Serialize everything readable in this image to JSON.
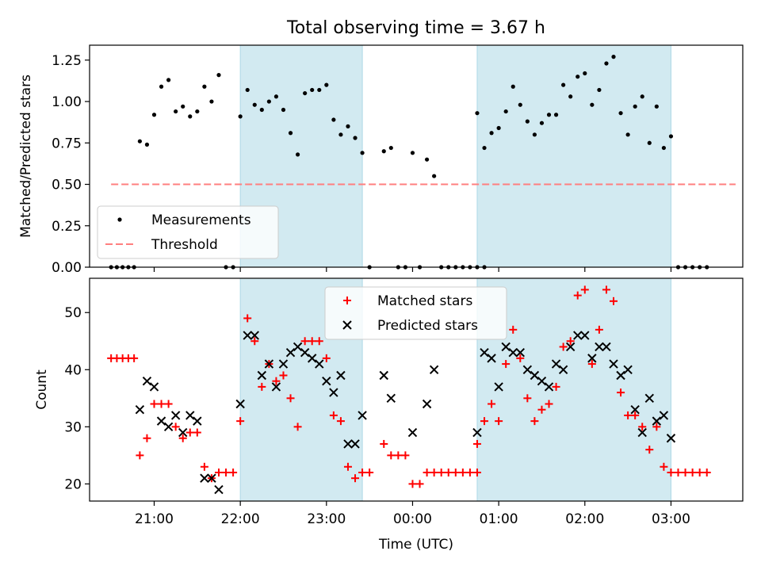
{
  "title": "Total observing time = 3.67 h",
  "colors": {
    "shade": "#add8e6",
    "measurement": "#000000",
    "threshold": "#ff7f7f",
    "matched": "#ff0000",
    "predicted": "#000000"
  },
  "chart_data": [
    {
      "type": "scatter",
      "ylabel": "Matched/Predicted stars",
      "ylim": [
        0,
        1.34
      ],
      "yticks": [
        0.0,
        0.25,
        0.5,
        0.75,
        1.0,
        1.25
      ],
      "ytick_labels": [
        "0.00",
        "0.25",
        "0.50",
        "0.75",
        "1.00",
        "1.25"
      ],
      "xlim": [
        "20:15",
        "03:50"
      ],
      "xticks": [
        "21:00",
        "22:00",
        "23:00",
        "00:00",
        "01:00",
        "02:00",
        "03:00"
      ],
      "shaded_intervals": [
        [
          "22:00",
          "23:25"
        ],
        [
          "00:45",
          "03:00"
        ]
      ],
      "legend": {
        "position": "lower-left",
        "entries": [
          "Measurements",
          "Threshold"
        ]
      },
      "threshold": {
        "name": "Threshold",
        "x": [
          "20:30",
          "03:45"
        ],
        "y": 0.5
      },
      "series": [
        {
          "name": "Measurements",
          "points": [
            [
              "20:30",
              0
            ],
            [
              "20:34",
              0
            ],
            [
              "20:38",
              0
            ],
            [
              "20:42",
              0
            ],
            [
              "20:46",
              0
            ],
            [
              "20:50",
              0.76
            ],
            [
              "20:55",
              0.74
            ],
            [
              "21:00",
              0.92
            ],
            [
              "21:05",
              1.09
            ],
            [
              "21:10",
              1.13
            ],
            [
              "21:15",
              0.94
            ],
            [
              "21:20",
              0.97
            ],
            [
              "21:25",
              0.91
            ],
            [
              "21:30",
              0.94
            ],
            [
              "21:35",
              1.09
            ],
            [
              "21:40",
              1.0
            ],
            [
              "21:45",
              1.16
            ],
            [
              "21:50",
              0
            ],
            [
              "21:55",
              0
            ],
            [
              "22:00",
              0.91
            ],
            [
              "22:05",
              1.07
            ],
            [
              "22:10",
              0.98
            ],
            [
              "22:15",
              0.95
            ],
            [
              "22:20",
              1.0
            ],
            [
              "22:25",
              1.03
            ],
            [
              "22:30",
              0.95
            ],
            [
              "22:35",
              0.81
            ],
            [
              "22:40",
              0.68
            ],
            [
              "22:45",
              1.05
            ],
            [
              "22:50",
              1.07
            ],
            [
              "22:55",
              1.07
            ],
            [
              "23:00",
              1.1
            ],
            [
              "23:05",
              0.89
            ],
            [
              "23:10",
              0.8
            ],
            [
              "23:15",
              0.85
            ],
            [
              "23:20",
              0.78
            ],
            [
              "23:25",
              0.69
            ],
            [
              "23:30",
              0
            ],
            [
              "23:40",
              0.7
            ],
            [
              "23:45",
              0.72
            ],
            [
              "23:50",
              0
            ],
            [
              "23:55",
              0
            ],
            [
              "24:00",
              0.69
            ],
            [
              "24:05",
              0
            ],
            [
              "24:10",
              0.65
            ],
            [
              "24:15",
              0.55
            ],
            [
              "24:20",
              0
            ],
            [
              "24:25",
              0
            ],
            [
              "24:30",
              0
            ],
            [
              "24:35",
              0
            ],
            [
              "24:40",
              0
            ],
            [
              "24:45",
              0
            ],
            [
              "24:50",
              0
            ],
            [
              "24:45",
              0.93
            ],
            [
              "24:50",
              0.72
            ],
            [
              "24:55",
              0.81
            ],
            [
              "25:00",
              0.84
            ],
            [
              "25:05",
              0.94
            ],
            [
              "25:10",
              1.09
            ],
            [
              "25:15",
              0.98
            ],
            [
              "25:20",
              0.88
            ],
            [
              "25:25",
              0.8
            ],
            [
              "25:30",
              0.87
            ],
            [
              "25:35",
              0.92
            ],
            [
              "25:40",
              0.92
            ],
            [
              "25:45",
              1.1
            ],
            [
              "25:50",
              1.03
            ],
            [
              "25:55",
              1.15
            ],
            [
              "26:00",
              1.17
            ],
            [
              "26:05",
              0.98
            ],
            [
              "26:10",
              1.07
            ],
            [
              "26:15",
              1.23
            ],
            [
              "26:20",
              1.27
            ],
            [
              "26:25",
              0.93
            ],
            [
              "26:30",
              0.8
            ],
            [
              "26:35",
              0.97
            ],
            [
              "26:40",
              1.03
            ],
            [
              "26:45",
              0.75
            ],
            [
              "26:50",
              0.97
            ],
            [
              "26:55",
              0.72
            ],
            [
              "27:00",
              0.79
            ],
            [
              "27:05",
              0
            ],
            [
              "27:10",
              0
            ],
            [
              "27:15",
              0
            ],
            [
              "27:20",
              0
            ],
            [
              "27:25",
              0
            ]
          ]
        }
      ]
    },
    {
      "type": "scatter",
      "xlabel": "Time (UTC)",
      "ylabel": "Count",
      "ylim": [
        17,
        56
      ],
      "yticks": [
        20,
        30,
        40,
        50
      ],
      "ytick_labels": [
        "20",
        "30",
        "40",
        "50"
      ],
      "xlim": [
        "20:15",
        "03:50"
      ],
      "xticks": [
        "21:00",
        "22:00",
        "23:00",
        "00:00",
        "01:00",
        "02:00",
        "03:00"
      ],
      "xtick_labels": [
        "21:00",
        "22:00",
        "23:00",
        "00:00",
        "01:00",
        "02:00",
        "03:00"
      ],
      "shaded_intervals": [
        [
          "22:00",
          "23:25"
        ],
        [
          "00:45",
          "03:00"
        ]
      ],
      "legend": {
        "position": "top-center",
        "entries": [
          "Matched stars",
          "Predicted stars"
        ]
      },
      "series": [
        {
          "name": "Matched stars",
          "marker": "+",
          "points": [
            [
              "20:30",
              42
            ],
            [
              "20:34",
              42
            ],
            [
              "20:38",
              42
            ],
            [
              "20:42",
              42
            ],
            [
              "20:46",
              42
            ],
            [
              "20:50",
              25
            ],
            [
              "20:55",
              28
            ],
            [
              "21:00",
              34
            ],
            [
              "21:05",
              34
            ],
            [
              "21:10",
              34
            ],
            [
              "21:15",
              30
            ],
            [
              "21:20",
              28
            ],
            [
              "21:25",
              29
            ],
            [
              "21:30",
              29
            ],
            [
              "21:35",
              23
            ],
            [
              "21:40",
              21
            ],
            [
              "21:45",
              22
            ],
            [
              "21:50",
              22
            ],
            [
              "21:55",
              22
            ],
            [
              "22:00",
              31
            ],
            [
              "22:05",
              49
            ],
            [
              "22:10",
              45
            ],
            [
              "22:15",
              37
            ],
            [
              "22:20",
              41
            ],
            [
              "22:25",
              38
            ],
            [
              "22:30",
              39
            ],
            [
              "22:35",
              35
            ],
            [
              "22:40",
              30
            ],
            [
              "22:45",
              45
            ],
            [
              "22:50",
              45
            ],
            [
              "22:55",
              45
            ],
            [
              "23:00",
              42
            ],
            [
              "23:05",
              32
            ],
            [
              "23:10",
              31
            ],
            [
              "23:15",
              23
            ],
            [
              "23:20",
              21
            ],
            [
              "23:25",
              22
            ],
            [
              "23:30",
              22
            ],
            [
              "23:40",
              27
            ],
            [
              "23:45",
              25
            ],
            [
              "23:50",
              25
            ],
            [
              "23:55",
              25
            ],
            [
              "24:00",
              20
            ],
            [
              "24:05",
              20
            ],
            [
              "24:10",
              22
            ],
            [
              "24:15",
              22
            ],
            [
              "24:20",
              22
            ],
            [
              "24:25",
              22
            ],
            [
              "24:30",
              22
            ],
            [
              "24:35",
              22
            ],
            [
              "24:40",
              22
            ],
            [
              "24:45",
              22
            ],
            [
              "24:45",
              27
            ],
            [
              "24:50",
              31
            ],
            [
              "24:55",
              34
            ],
            [
              "25:00",
              31
            ],
            [
              "25:05",
              41
            ],
            [
              "25:10",
              47
            ],
            [
              "25:15",
              42
            ],
            [
              "25:20",
              35
            ],
            [
              "25:25",
              31
            ],
            [
              "25:30",
              33
            ],
            [
              "25:35",
              34
            ],
            [
              "25:40",
              37
            ],
            [
              "25:45",
              44
            ],
            [
              "25:50",
              45
            ],
            [
              "25:55",
              53
            ],
            [
              "26:00",
              54
            ],
            [
              "26:05",
              41
            ],
            [
              "26:10",
              47
            ],
            [
              "26:15",
              54
            ],
            [
              "26:20",
              52
            ],
            [
              "26:25",
              36
            ],
            [
              "26:30",
              32
            ],
            [
              "26:35",
              32
            ],
            [
              "26:40",
              30
            ],
            [
              "26:45",
              26
            ],
            [
              "26:50",
              30
            ],
            [
              "26:55",
              23
            ],
            [
              "27:00",
              22
            ],
            [
              "27:05",
              22
            ],
            [
              "27:10",
              22
            ],
            [
              "27:15",
              22
            ],
            [
              "27:20",
              22
            ],
            [
              "27:25",
              22
            ]
          ]
        },
        {
          "name": "Predicted stars",
          "marker": "x",
          "points": [
            [
              "20:50",
              33
            ],
            [
              "20:55",
              38
            ],
            [
              "21:00",
              37
            ],
            [
              "21:05",
              31
            ],
            [
              "21:10",
              30
            ],
            [
              "21:15",
              32
            ],
            [
              "21:20",
              29
            ],
            [
              "21:25",
              32
            ],
            [
              "21:30",
              31
            ],
            [
              "21:35",
              21
            ],
            [
              "21:40",
              21
            ],
            [
              "21:45",
              19
            ],
            [
              "22:00",
              34
            ],
            [
              "22:05",
              46
            ],
            [
              "22:10",
              46
            ],
            [
              "22:15",
              39
            ],
            [
              "22:20",
              41
            ],
            [
              "22:25",
              37
            ],
            [
              "22:30",
              41
            ],
            [
              "22:35",
              43
            ],
            [
              "22:40",
              44
            ],
            [
              "22:45",
              43
            ],
            [
              "22:50",
              42
            ],
            [
              "22:55",
              41
            ],
            [
              "23:00",
              38
            ],
            [
              "23:05",
              36
            ],
            [
              "23:10",
              39
            ],
            [
              "23:15",
              27
            ],
            [
              "23:20",
              27
            ],
            [
              "23:25",
              32
            ],
            [
              "23:40",
              39
            ],
            [
              "23:45",
              35
            ],
            [
              "24:00",
              29
            ],
            [
              "24:10",
              34
            ],
            [
              "24:15",
              40
            ],
            [
              "24:45",
              29
            ],
            [
              "24:50",
              43
            ],
            [
              "24:55",
              42
            ],
            [
              "25:00",
              37
            ],
            [
              "25:05",
              44
            ],
            [
              "25:10",
              43
            ],
            [
              "25:15",
              43
            ],
            [
              "25:20",
              40
            ],
            [
              "25:25",
              39
            ],
            [
              "25:30",
              38
            ],
            [
              "25:35",
              37
            ],
            [
              "25:40",
              41
            ],
            [
              "25:45",
              40
            ],
            [
              "25:50",
              44
            ],
            [
              "25:55",
              46
            ],
            [
              "26:00",
              46
            ],
            [
              "26:05",
              42
            ],
            [
              "26:10",
              44
            ],
            [
              "26:15",
              44
            ],
            [
              "26:20",
              41
            ],
            [
              "26:25",
              39
            ],
            [
              "26:30",
              40
            ],
            [
              "26:35",
              33
            ],
            [
              "26:40",
              29
            ],
            [
              "26:45",
              35
            ],
            [
              "26:50",
              31
            ],
            [
              "26:55",
              32
            ],
            [
              "27:00",
              28
            ]
          ]
        }
      ]
    }
  ]
}
